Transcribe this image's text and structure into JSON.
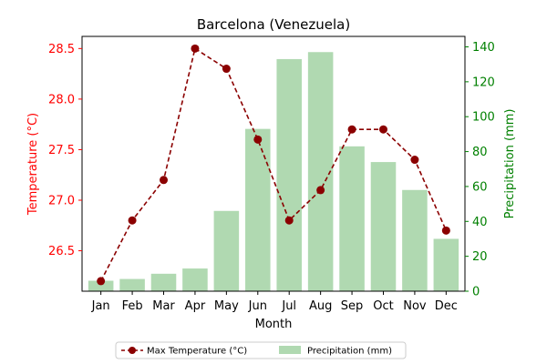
{
  "chart_data": {
    "type": "bar+line",
    "title": "Barcelona (Venezuela)",
    "xlabel": "Month",
    "ylabel_left": "Temperature (°C)",
    "ylabel_right": "Precipitation (mm)",
    "categories": [
      "Jan",
      "Feb",
      "Mar",
      "Apr",
      "May",
      "Jun",
      "Jul",
      "Aug",
      "Sep",
      "Oct",
      "Nov",
      "Dec"
    ],
    "left_axis": {
      "ylim": [
        26.1,
        28.62
      ],
      "ticks": [
        "26.5",
        "27.0",
        "27.5",
        "28.0",
        "28.5"
      ],
      "color": "#ff0000"
    },
    "right_axis": {
      "ylim": [
        0,
        146
      ],
      "ticks": [
        "0",
        "20",
        "40",
        "60",
        "80",
        "100",
        "120",
        "140"
      ],
      "color": "#008000"
    },
    "series": [
      {
        "name": "Max Temperature (°C)",
        "kind": "line",
        "axis": "left",
        "color": "#8b0000",
        "style": "dashed",
        "marker": "circle",
        "values": [
          26.2,
          26.8,
          27.2,
          28.5,
          28.3,
          27.6,
          26.8,
          27.1,
          27.7,
          27.7,
          27.4,
          26.7
        ]
      },
      {
        "name": "Precipitation (mm)",
        "kind": "bar",
        "axis": "right",
        "color": "#b0d9b1",
        "values": [
          6,
          7,
          10,
          13,
          46,
          93,
          133,
          137,
          83,
          74,
          58,
          30
        ]
      }
    ],
    "legend": {
      "placement": "bottom-center",
      "columns": 2
    },
    "grid": false
  }
}
